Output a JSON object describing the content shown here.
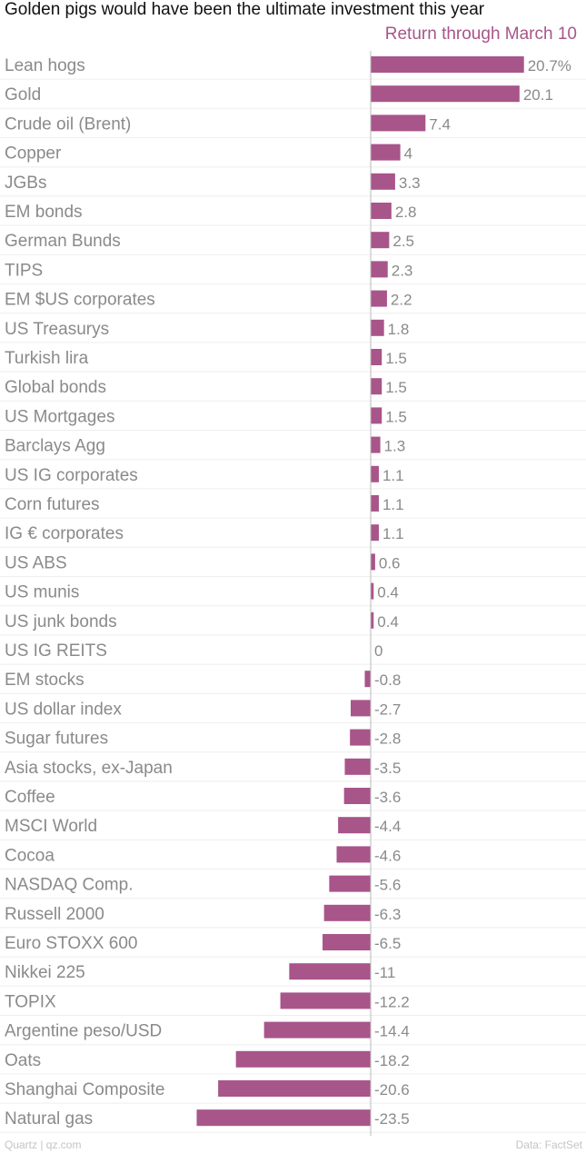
{
  "chart_data": {
    "type": "bar",
    "orientation": "horizontal",
    "title": "Golden pigs would have been the ultimate investment this year",
    "series": [
      {
        "name": "Return through March 10",
        "color": "#a8558a",
        "values": [
          20.7,
          20.1,
          7.4,
          4,
          3.3,
          2.8,
          2.5,
          2.3,
          2.2,
          1.8,
          1.5,
          1.5,
          1.5,
          1.3,
          1.1,
          1.1,
          1.1,
          0.6,
          0.4,
          0.4,
          0,
          -0.8,
          -2.7,
          -2.8,
          -3.5,
          -3.6,
          -4.4,
          -4.6,
          -5.6,
          -6.3,
          -6.5,
          -11,
          -12.2,
          -14.4,
          -18.2,
          -20.6,
          -23.5
        ]
      }
    ],
    "categories": [
      "Lean hogs",
      "Gold",
      "Crude oil (Brent)",
      "Copper",
      "JGBs",
      "EM bonds",
      "German Bunds",
      "TIPS",
      "EM $US corporates",
      "US Treasurys",
      "Turkish lira",
      "Global bonds",
      "US Mortgages",
      "Barclays Agg",
      "US IG corporates",
      "Corn futures",
      "IG € corporates",
      "US ABS",
      "US munis",
      "US junk bonds",
      "US IG REITS",
      "EM stocks",
      "US dollar index",
      "Sugar futures",
      "Asia stocks, ex-Japan",
      "Coffee",
      "MSCI World",
      "Cocoa",
      "NASDAQ Comp.",
      "Russell 2000",
      "Euro STOXX 600",
      "Nikkei 225",
      "TOPIX",
      "Argentine peso/USD",
      "Oats",
      "Shanghai Composite",
      "Natural gas"
    ],
    "value_labels": [
      "20.7%",
      "20.1",
      "7.4",
      "4",
      "3.3",
      "2.8",
      "2.5",
      "2.3",
      "2.2",
      "1.8",
      "1.5",
      "1.5",
      "1.5",
      "1.3",
      "1.1",
      "1.1",
      "1.1",
      "0.6",
      "0.4",
      "0.4",
      "0",
      "-0.8",
      "-2.7",
      "-2.8",
      "-3.5",
      "-3.6",
      "-4.4",
      "-4.6",
      "-5.6",
      "-6.3",
      "-6.5",
      "-11",
      "-12.2",
      "-14.4",
      "-18.2",
      "-20.6",
      "-23.5"
    ],
    "xlim": [
      -23.5,
      20.7
    ],
    "grid": false,
    "colors": {
      "bar": "#a8558a",
      "label": "#8a8a8a",
      "axis": "#bbbbbb",
      "separator": "#eeeeee"
    }
  },
  "footer": {
    "source_left": "Quartz | qz.com",
    "source_right": "Data: FactSet"
  }
}
